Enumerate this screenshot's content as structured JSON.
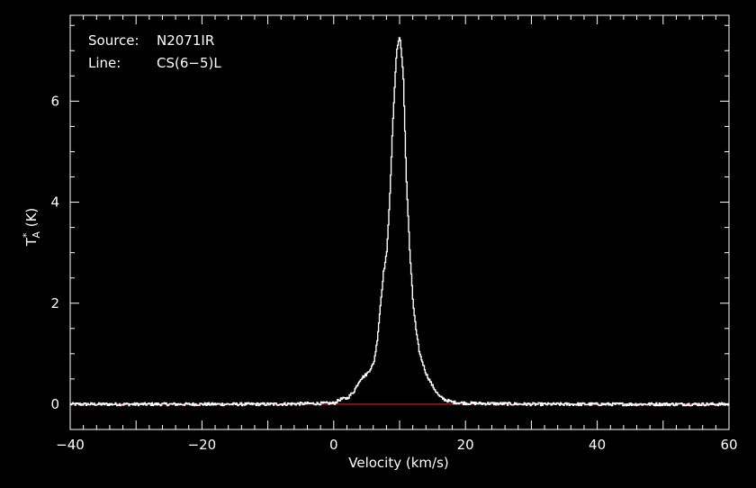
{
  "chart_data": {
    "type": "line",
    "annotations": {
      "source_label": "Source:",
      "source_value": "N2071IR",
      "line_label": "Line:",
      "line_value": "CS(6−5)L"
    },
    "xlabel": "Velocity (km/s)",
    "ylabel": {
      "base": "T",
      "sub": "A",
      "sup": "*",
      "unit": " (K)"
    },
    "xlim": [
      -40,
      60
    ],
    "ylim": [
      -0.5,
      7.7
    ],
    "xticks": [
      -40,
      -20,
      0,
      20,
      40,
      60
    ],
    "xtick_labels": [
      "−40",
      "−20",
      "0",
      "20",
      "40",
      "60"
    ],
    "yticks": [
      0,
      2,
      4,
      6
    ],
    "ytick_labels": [
      "0",
      "2",
      "4",
      "6"
    ],
    "baseline": 0,
    "colors": {
      "background": "#000000",
      "spectrum": "#ffffff",
      "baseline": "#cc2222",
      "axes": "#ffffff"
    },
    "series": [
      {
        "x": [
          -40,
          -30,
          -20,
          -10,
          0,
          1,
          2,
          3,
          4,
          5,
          6,
          6.5,
          7,
          7.5,
          8,
          8.5,
          9,
          9.5,
          10,
          10.5,
          11,
          11.5,
          12,
          12.5,
          13,
          14,
          15,
          16,
          17,
          18,
          20,
          30,
          40,
          50,
          60
        ],
        "y": [
          0.0,
          0.0,
          0.0,
          0.0,
          0.02,
          0.1,
          0.12,
          0.25,
          0.5,
          0.6,
          0.8,
          1.2,
          1.9,
          2.6,
          3.0,
          4.2,
          5.8,
          7.0,
          7.3,
          6.5,
          4.4,
          3.0,
          2.0,
          1.4,
          1.0,
          0.6,
          0.35,
          0.15,
          0.08,
          0.04,
          0.02,
          0.0,
          0.0,
          0.0,
          0.0
        ]
      }
    ]
  }
}
